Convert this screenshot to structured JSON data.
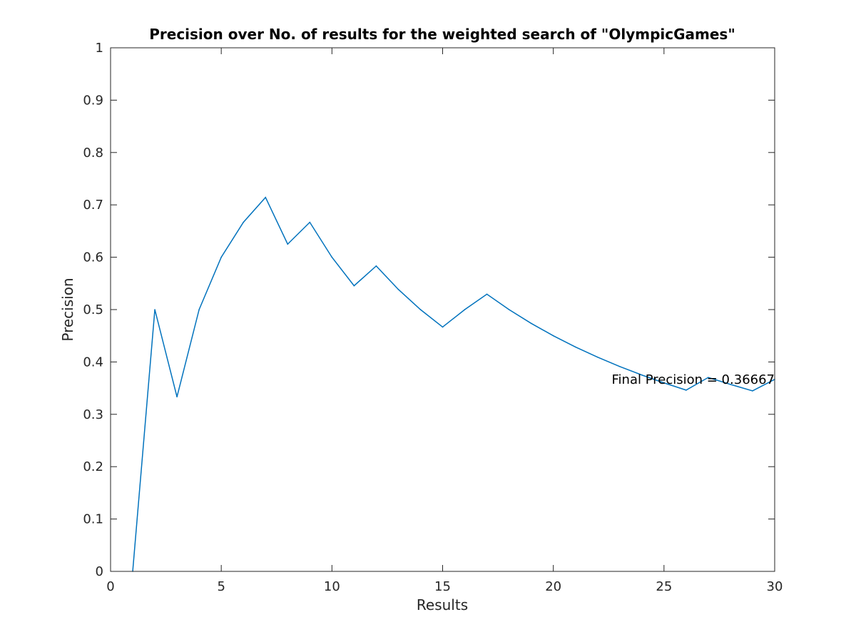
{
  "chart_data": {
    "type": "line",
    "title": "Precision over No. of results for the weighted search of \"OlympicGames\"",
    "xlabel": "Results",
    "ylabel": "Precision",
    "xlim": [
      0,
      30
    ],
    "ylim": [
      0,
      1
    ],
    "x_ticks": [
      "0",
      "5",
      "10",
      "15",
      "20",
      "25",
      "30"
    ],
    "y_ticks": [
      "0",
      "0.1",
      "0.2",
      "0.3",
      "0.4",
      "0.5",
      "0.6",
      "0.7",
      "0.8",
      "0.9",
      "1"
    ],
    "grid": false,
    "series": [
      {
        "color": "#0072BD",
        "x": [
          1,
          2,
          3,
          4,
          5,
          6,
          7,
          8,
          9,
          10,
          11,
          12,
          13,
          14,
          15,
          16,
          17,
          18,
          19,
          20,
          21,
          22,
          23,
          24,
          25,
          26,
          27,
          28,
          29,
          30
        ],
        "values": [
          0,
          0.5,
          0.3333,
          0.5,
          0.6,
          0.6667,
          0.7143,
          0.625,
          0.6667,
          0.6,
          0.5455,
          0.5833,
          0.5385,
          0.5,
          0.4667,
          0.5,
          0.5294,
          0.5,
          0.4737,
          0.45,
          0.4286,
          0.4091,
          0.3913,
          0.375,
          0.36,
          0.3462,
          0.3704,
          0.3571,
          0.3448,
          0.3667
        ]
      }
    ],
    "annotation": {
      "text": "Final Precision = 0.36667",
      "x": 30,
      "y": 0.36667
    }
  }
}
